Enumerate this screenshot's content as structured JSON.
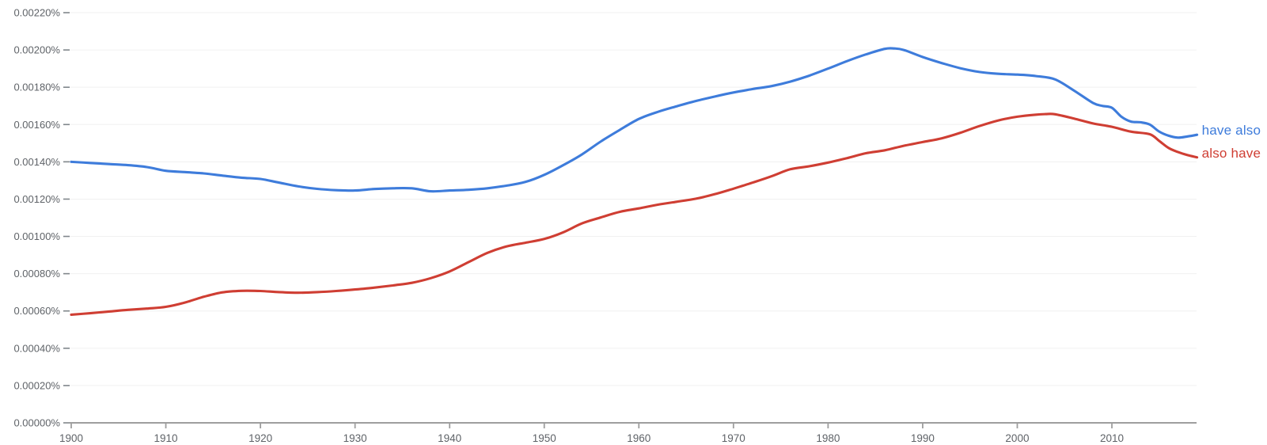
{
  "chart_data": {
    "type": "line",
    "title": "",
    "xlabel": "",
    "ylabel": "",
    "xlim": [
      1900,
      2019
    ],
    "ylim_percent": [
      0,
      0.0022
    ],
    "grid": "horizontal",
    "legend_position": "end-of-line-labels",
    "y_tick_labels_top_to_bottom": [
      "0.00220%",
      "0.00200%",
      "0.00180%",
      "0.00160%",
      "0.00140%",
      "0.00120%",
      "0.00100%",
      "0.00080%",
      "0.00060%",
      "0.00040%",
      "0.00020%",
      "0.00000%"
    ],
    "y_tick_values_percent": [
      0.0022,
      0.002,
      0.0018,
      0.0016,
      0.0014,
      0.0012,
      0.001,
      0.0008,
      0.0006,
      0.0004,
      0.0002,
      0.0
    ],
    "x_tick_labels": [
      "1900",
      "1910",
      "1920",
      "1930",
      "1940",
      "1950",
      "1960",
      "1970",
      "1980",
      "1990",
      "2000",
      "2010"
    ],
    "x_tick_values": [
      1900,
      1910,
      1920,
      1930,
      1940,
      1950,
      1960,
      1970,
      1980,
      1990,
      2000,
      2010
    ],
    "axis_color": "#9e9e9e",
    "gridline_color": "#f0f0f0",
    "tick_label_color": "#5f6368",
    "series": [
      {
        "name": "have also",
        "color": "#3e7cdb",
        "points_year_percent": [
          [
            1900,
            0.0014
          ],
          [
            1902,
            0.001394
          ],
          [
            1904,
            0.001388
          ],
          [
            1906,
            0.001382
          ],
          [
            1908,
            0.001372
          ],
          [
            1910,
            0.001352
          ],
          [
            1912,
            0.001345
          ],
          [
            1914,
            0.001338
          ],
          [
            1916,
            0.001326
          ],
          [
            1918,
            0.001315
          ],
          [
            1920,
            0.001308
          ],
          [
            1922,
            0.001288
          ],
          [
            1924,
            0.001268
          ],
          [
            1926,
            0.001255
          ],
          [
            1928,
            0.001248
          ],
          [
            1930,
            0.001246
          ],
          [
            1932,
            0.001254
          ],
          [
            1934,
            0.001258
          ],
          [
            1936,
            0.001258
          ],
          [
            1938,
            0.001242
          ],
          [
            1940,
            0.001246
          ],
          [
            1942,
            0.00125
          ],
          [
            1944,
            0.001258
          ],
          [
            1946,
            0.001272
          ],
          [
            1948,
            0.001292
          ],
          [
            1950,
            0.00133
          ],
          [
            1952,
            0.001382
          ],
          [
            1954,
            0.00144
          ],
          [
            1956,
            0.00151
          ],
          [
            1958,
            0.001572
          ],
          [
            1960,
            0.00163
          ],
          [
            1962,
            0.001668
          ],
          [
            1964,
            0.001698
          ],
          [
            1966,
            0.001726
          ],
          [
            1968,
            0.00175
          ],
          [
            1970,
            0.001772
          ],
          [
            1972,
            0.00179
          ],
          [
            1974,
            0.001806
          ],
          [
            1976,
            0.00183
          ],
          [
            1978,
            0.001862
          ],
          [
            1980,
            0.0019
          ],
          [
            1982,
            0.00194
          ],
          [
            1984,
            0.001976
          ],
          [
            1986,
            0.002006
          ],
          [
            1987,
            0.002008
          ],
          [
            1988,
            0.002
          ],
          [
            1990,
            0.001962
          ],
          [
            1992,
            0.00193
          ],
          [
            1994,
            0.001902
          ],
          [
            1996,
            0.001882
          ],
          [
            1998,
            0.001872
          ],
          [
            2000,
            0.001868
          ],
          [
            2002,
            0.00186
          ],
          [
            2004,
            0.001842
          ],
          [
            2006,
            0.001782
          ],
          [
            2008,
            0.001716
          ],
          [
            2009,
            0.0017
          ],
          [
            2010,
            0.00169
          ],
          [
            2011,
            0.001642
          ],
          [
            2012,
            0.001616
          ],
          [
            2013,
            0.001612
          ],
          [
            2014,
            0.0016
          ],
          [
            2015,
            0.001562
          ],
          [
            2016,
            0.00154
          ],
          [
            2017,
            0.00153
          ],
          [
            2018,
            0.001536
          ],
          [
            2019,
            0.001545
          ]
        ]
      },
      {
        "name": "also have",
        "color": "#cf3e33",
        "points_year_percent": [
          [
            1900,
            0.00058
          ],
          [
            1902,
            0.000588
          ],
          [
            1904,
            0.000597
          ],
          [
            1906,
            0.000606
          ],
          [
            1908,
            0.000613
          ],
          [
            1910,
            0.000622
          ],
          [
            1912,
            0.000645
          ],
          [
            1914,
            0.000676
          ],
          [
            1916,
            0.0007
          ],
          [
            1918,
            0.000708
          ],
          [
            1920,
            0.000707
          ],
          [
            1922,
            0.000701
          ],
          [
            1924,
            0.000698
          ],
          [
            1926,
            0.000701
          ],
          [
            1928,
            0.000707
          ],
          [
            1930,
            0.000715
          ],
          [
            1932,
            0.000725
          ],
          [
            1934,
            0.000737
          ],
          [
            1936,
            0.000751
          ],
          [
            1938,
            0.000776
          ],
          [
            1940,
            0.000812
          ],
          [
            1942,
            0.000862
          ],
          [
            1944,
            0.000912
          ],
          [
            1946,
            0.000946
          ],
          [
            1948,
            0.000966
          ],
          [
            1950,
            0.000986
          ],
          [
            1952,
            0.001022
          ],
          [
            1954,
            0.00107
          ],
          [
            1956,
            0.001102
          ],
          [
            1958,
            0.001132
          ],
          [
            1960,
            0.00115
          ],
          [
            1962,
            0.00117
          ],
          [
            1964,
            0.001186
          ],
          [
            1966,
            0.001202
          ],
          [
            1968,
            0.001226
          ],
          [
            1970,
            0.001256
          ],
          [
            1972,
            0.001288
          ],
          [
            1974,
            0.001322
          ],
          [
            1976,
            0.00136
          ],
          [
            1978,
            0.001376
          ],
          [
            1980,
            0.001396
          ],
          [
            1982,
            0.00142
          ],
          [
            1984,
            0.001446
          ],
          [
            1986,
            0.001462
          ],
          [
            1988,
            0.001486
          ],
          [
            1990,
            0.001506
          ],
          [
            1992,
            0.001526
          ],
          [
            1994,
            0.001556
          ],
          [
            1996,
            0.001592
          ],
          [
            1998,
            0.001622
          ],
          [
            2000,
            0.001642
          ],
          [
            2002,
            0.001653
          ],
          [
            2003,
            0.001656
          ],
          [
            2004,
            0.001655
          ],
          [
            2006,
            0.001632
          ],
          [
            2008,
            0.001606
          ],
          [
            2010,
            0.001588
          ],
          [
            2012,
            0.001562
          ],
          [
            2014,
            0.001548
          ],
          [
            2015,
            0.001512
          ],
          [
            2016,
            0.001474
          ],
          [
            2017,
            0.001452
          ],
          [
            2018,
            0.001436
          ],
          [
            2019,
            0.001424
          ]
        ]
      }
    ]
  }
}
